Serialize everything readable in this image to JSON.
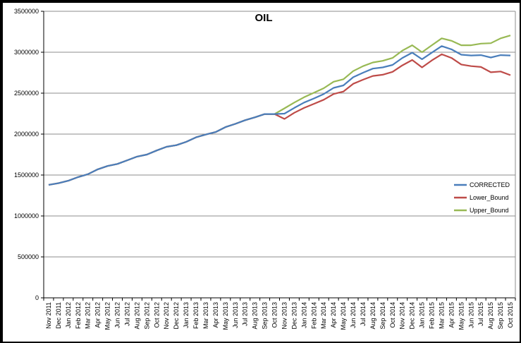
{
  "chart_data": {
    "type": "line",
    "title": "OIL",
    "xlabel": "",
    "ylabel": "",
    "ylim": [
      0,
      3500000
    ],
    "yticks": [
      "0",
      "500000",
      "1000000",
      "1500000",
      "2000000",
      "2500000",
      "3000000",
      "3500000"
    ],
    "ytick_values": [
      0,
      500000,
      1000000,
      1500000,
      2000000,
      2500000,
      3000000,
      3500000
    ],
    "grid": true,
    "legend_position": "right",
    "categories": [
      "Nov 2011",
      "Dec 2011",
      "Jan 2012",
      "Feb 2012",
      "Mar 2012",
      "Apr 2012",
      "May 2012",
      "Jun 2012",
      "Jul 2012",
      "Aug 2012",
      "Sep 2012",
      "Oct 2012",
      "Nov 2012",
      "Dec 2012",
      "Jan 2013",
      "Feb 2013",
      "Mar 2013",
      "Apr 2013",
      "May 2013",
      "Jun 2013",
      "Jul 2013",
      "Aug 2013",
      "Sep 2013",
      "Oct 2013",
      "Nov 2013",
      "Dec 2013",
      "Jan 2014",
      "Feb 2014",
      "Mar 2014",
      "Apr 2014",
      "May 2014",
      "Jun 2014",
      "Jul 2014",
      "Aug 2014",
      "Sep 2014",
      "Oct 2014",
      "Nov 2014",
      "Dec 2014",
      "Jan 2015",
      "Feb 2015",
      "Mar 2015",
      "Apr 2015",
      "May 2015",
      "Jun 2015",
      "Jul 2015",
      "Aug 2015",
      "Sep 2015",
      "Oct 2015"
    ],
    "series": [
      {
        "name": "CORRECTED",
        "color": "#4a7ebb",
        "values": [
          1380000,
          1400000,
          1430000,
          1475000,
          1510000,
          1570000,
          1610000,
          1635000,
          1680000,
          1725000,
          1750000,
          1800000,
          1845000,
          1865000,
          1905000,
          1960000,
          1995000,
          2025000,
          2085000,
          2125000,
          2170000,
          2205000,
          2245000,
          2245000,
          2250000,
          2320000,
          2385000,
          2435000,
          2490000,
          2565000,
          2595000,
          2695000,
          2750000,
          2800000,
          2815000,
          2845000,
          2930000,
          2995000,
          2915000,
          2995000,
          3075000,
          3035000,
          2970000,
          2960000,
          2965000,
          2935000,
          2965000,
          2960000
        ]
      },
      {
        "name": "Lower_Bound",
        "color": "#be4b48",
        "values": [
          1380000,
          1400000,
          1430000,
          1475000,
          1510000,
          1570000,
          1610000,
          1635000,
          1680000,
          1725000,
          1750000,
          1800000,
          1845000,
          1865000,
          1905000,
          1960000,
          1995000,
          2025000,
          2085000,
          2125000,
          2170000,
          2205000,
          2245000,
          2245000,
          2185000,
          2260000,
          2320000,
          2370000,
          2420000,
          2490000,
          2520000,
          2615000,
          2665000,
          2710000,
          2725000,
          2760000,
          2840000,
          2905000,
          2815000,
          2900000,
          2975000,
          2930000,
          2850000,
          2830000,
          2820000,
          2755000,
          2765000,
          2720000
        ]
      },
      {
        "name": "Upper_Bound",
        "color": "#98b954",
        "values": [
          1380000,
          1400000,
          1430000,
          1475000,
          1510000,
          1570000,
          1610000,
          1635000,
          1680000,
          1725000,
          1750000,
          1800000,
          1845000,
          1865000,
          1905000,
          1960000,
          1995000,
          2025000,
          2085000,
          2125000,
          2170000,
          2205000,
          2245000,
          2245000,
          2315000,
          2385000,
          2450000,
          2505000,
          2560000,
          2640000,
          2670000,
          2770000,
          2830000,
          2875000,
          2895000,
          2930000,
          3020000,
          3085000,
          3000000,
          3085000,
          3170000,
          3140000,
          3085000,
          3085000,
          3105000,
          3110000,
          3170000,
          3205000
        ]
      }
    ]
  }
}
